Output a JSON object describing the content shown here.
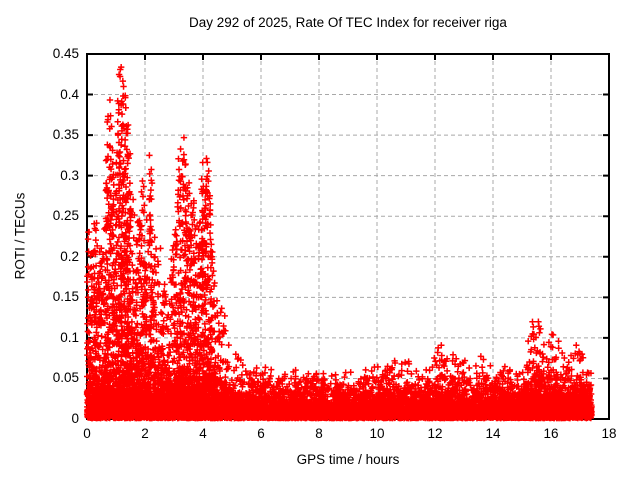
{
  "window": {
    "background": "#ffffff"
  },
  "chart_data": {
    "type": "scatter",
    "title": "Day 292 of 2025, Rate Of TEC Index for receiver riga",
    "xlabel": "GPS time / hours",
    "ylabel": "ROTI / TECUs",
    "xlim": [
      0,
      18
    ],
    "ylim": [
      0,
      0.45
    ],
    "xticks": {
      "values": [
        0,
        2,
        4,
        6,
        8,
        10,
        12,
        14,
        16,
        18
      ],
      "labels": [
        "0",
        "2",
        "4",
        "6",
        "8",
        "10",
        "12",
        "14",
        "16",
        "18"
      ]
    },
    "yticks": {
      "values": [
        0,
        0.05,
        0.1,
        0.15,
        0.2,
        0.25,
        0.3,
        0.35,
        0.4,
        0.45
      ],
      "labels": [
        "0",
        "0.05",
        "0.1",
        "0.15",
        "0.2",
        "0.25",
        "0.3",
        "0.35",
        "0.4",
        "0.45"
      ]
    },
    "grid": {
      "show": true,
      "color": "#a8a8a8",
      "dash": [
        4,
        3
      ]
    },
    "axis_color": "#000000",
    "text_color": "#000000",
    "legend": "none",
    "marker": {
      "shape": "plus",
      "color": "#ff0000",
      "arm": 3.2,
      "stroke": 1.5
    },
    "series": [
      {
        "name": "ROTI",
        "start_hour": 0,
        "end_hour": 17.4,
        "envelope": [
          [
            0,
            0.27
          ],
          [
            0.1,
            0.26
          ],
          [
            0.2,
            0.21
          ],
          [
            0.3,
            0.29
          ],
          [
            0.4,
            0.22
          ],
          [
            0.5,
            0.2
          ],
          [
            0.6,
            0.24
          ],
          [
            0.7,
            0.35
          ],
          [
            0.8,
            0.4
          ],
          [
            0.9,
            0.31
          ],
          [
            1,
            0.28
          ],
          [
            1.1,
            0.42
          ],
          [
            1.2,
            0.44
          ],
          [
            1.3,
            0.4
          ],
          [
            1.4,
            0.37
          ],
          [
            1.5,
            0.31
          ],
          [
            1.6,
            0.27
          ],
          [
            1.7,
            0.26
          ],
          [
            1.8,
            0.24
          ],
          [
            1.9,
            0.3
          ],
          [
            2,
            0.29
          ],
          [
            2.1,
            0.26
          ],
          [
            2.2,
            0.33
          ],
          [
            2.3,
            0.24
          ],
          [
            2.4,
            0.22
          ],
          [
            2.5,
            0.2
          ],
          [
            2.6,
            0.19
          ],
          [
            2.7,
            0.17
          ],
          [
            2.8,
            0.16
          ],
          [
            2.9,
            0.18
          ],
          [
            3,
            0.22
          ],
          [
            3.1,
            0.26
          ],
          [
            3.2,
            0.33
          ],
          [
            3.3,
            0.34
          ],
          [
            3.4,
            0.31
          ],
          [
            3.5,
            0.3
          ],
          [
            3.6,
            0.26
          ],
          [
            3.7,
            0.28
          ],
          [
            3.8,
            0.22
          ],
          [
            3.9,
            0.26
          ],
          [
            4,
            0.33
          ],
          [
            4.1,
            0.33
          ],
          [
            4.2,
            0.3
          ],
          [
            4.3,
            0.26
          ],
          [
            4.4,
            0.17
          ],
          [
            4.5,
            0.16
          ],
          [
            4.6,
            0.15
          ],
          [
            4.7,
            0.13
          ],
          [
            4.8,
            0.11
          ],
          [
            4.9,
            0.09
          ],
          [
            5,
            0.08
          ],
          [
            5.2,
            0.08
          ],
          [
            5.4,
            0.075
          ],
          [
            5.6,
            0.06
          ],
          [
            5.8,
            0.07
          ],
          [
            6,
            0.083
          ],
          [
            6.2,
            0.07
          ],
          [
            6.4,
            0.06
          ],
          [
            6.6,
            0.055
          ],
          [
            6.8,
            0.06
          ],
          [
            7,
            0.06
          ],
          [
            7.2,
            0.08
          ],
          [
            7.4,
            0.06
          ],
          [
            7.6,
            0.055
          ],
          [
            7.8,
            0.06
          ],
          [
            8,
            0.06
          ],
          [
            8.2,
            0.055
          ],
          [
            8.4,
            0.05
          ],
          [
            8.6,
            0.055
          ],
          [
            8.8,
            0.06
          ],
          [
            9,
            0.063
          ],
          [
            9.2,
            0.055
          ],
          [
            9.4,
            0.05
          ],
          [
            9.6,
            0.055
          ],
          [
            9.8,
            0.06
          ],
          [
            10,
            0.07
          ],
          [
            10.2,
            0.065
          ],
          [
            10.4,
            0.079
          ],
          [
            10.6,
            0.075
          ],
          [
            10.8,
            0.06
          ],
          [
            11,
            0.085
          ],
          [
            11.2,
            0.07
          ],
          [
            11.4,
            0.065
          ],
          [
            11.6,
            0.06
          ],
          [
            11.8,
            0.065
          ],
          [
            12,
            0.08
          ],
          [
            12.2,
            0.1
          ],
          [
            12.4,
            0.085
          ],
          [
            12.6,
            0.083
          ],
          [
            12.8,
            0.07
          ],
          [
            13,
            0.075
          ],
          [
            13.2,
            0.065
          ],
          [
            13.4,
            0.07
          ],
          [
            13.6,
            0.086
          ],
          [
            13.8,
            0.07
          ],
          [
            14,
            0.065
          ],
          [
            14.2,
            0.06
          ],
          [
            14.4,
            0.067
          ],
          [
            14.6,
            0.06
          ],
          [
            14.8,
            0.065
          ],
          [
            15,
            0.07
          ],
          [
            15.2,
            0.09
          ],
          [
            15.4,
            0.144
          ],
          [
            15.6,
            0.12
          ],
          [
            15.8,
            0.1
          ],
          [
            16,
            0.103
          ],
          [
            16.2,
            0.1
          ],
          [
            16.4,
            0.085
          ],
          [
            16.6,
            0.08
          ],
          [
            16.8,
            0.091
          ],
          [
            17,
            0.09
          ],
          [
            17.2,
            0.075
          ],
          [
            17.4,
            0.06
          ]
        ],
        "density": {
          "seed": 292,
          "baseline_points": 9000,
          "baseline_scale": 0.012,
          "baseline_cap": 0.062,
          "bin_hours": 0.05,
          "active_threshold": 0.08,
          "active_per_unit": 130,
          "active_min": 0.02,
          "active_shape_exp": 2.2,
          "quiet_threshold": 0.05,
          "quiet_per_unit": 60,
          "streak_threshold": 0.3,
          "streak_points": 6
        }
      }
    ]
  }
}
